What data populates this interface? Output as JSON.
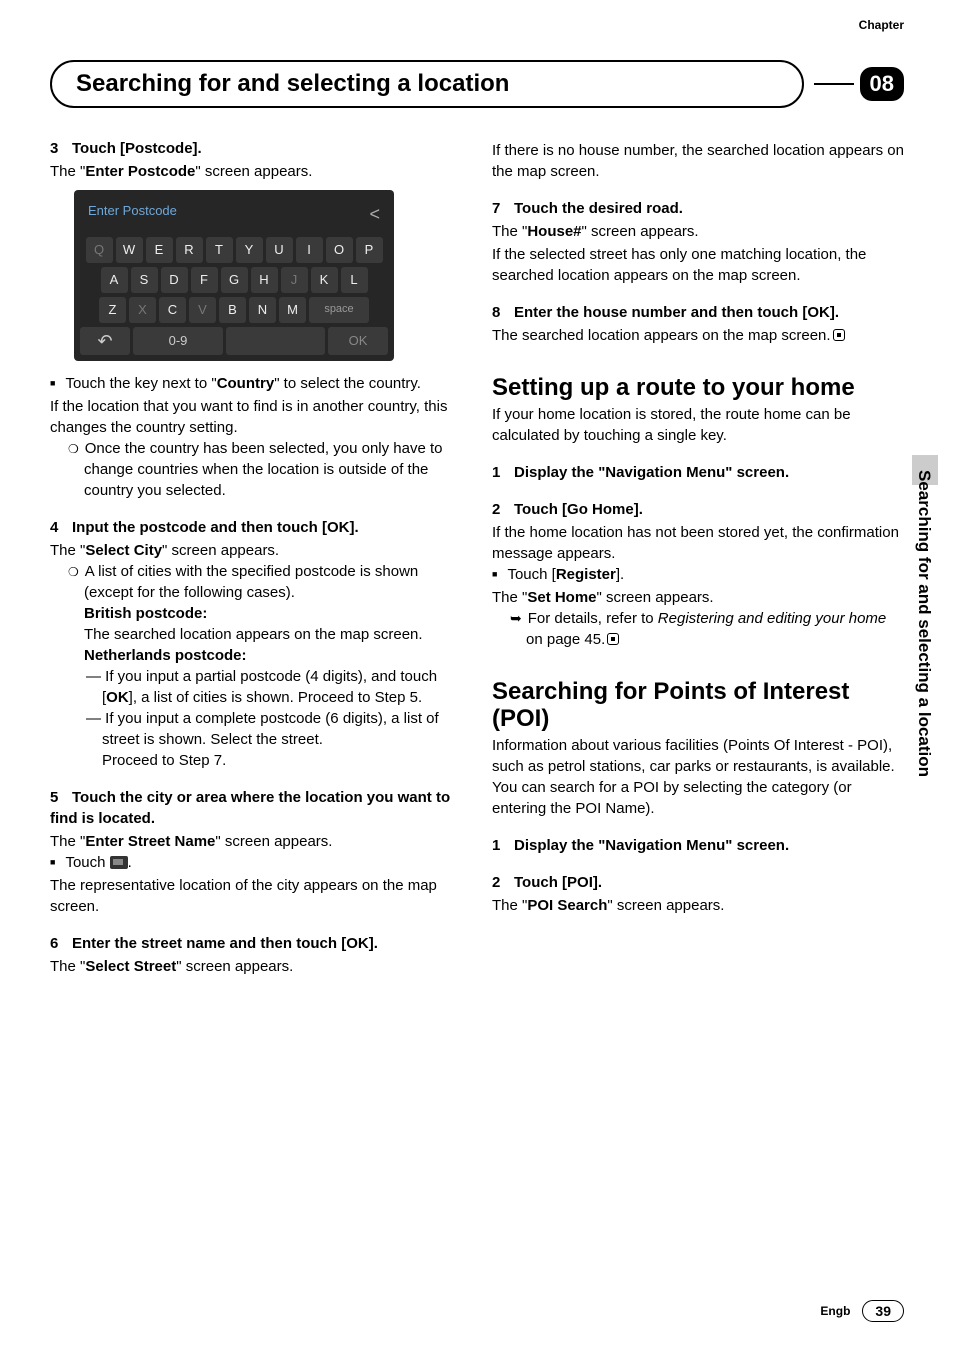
{
  "chapter_label": "Chapter",
  "chapter_number": "08",
  "header_title": "Searching for and selecting a location",
  "side_tab": "Searching for and selecting a location",
  "footer_lang": "Engb",
  "footer_page": "39",
  "keyboard": {
    "title": "Enter Postcode",
    "row1": [
      "Q",
      "W",
      "E",
      "R",
      "T",
      "Y",
      "U",
      "I",
      "O",
      "P"
    ],
    "row1_dim": [
      true,
      false,
      false,
      false,
      false,
      false,
      false,
      false,
      false,
      false
    ],
    "row2": [
      "A",
      "S",
      "D",
      "F",
      "G",
      "H",
      "J",
      "K",
      "L"
    ],
    "row2_dim": [
      false,
      false,
      false,
      false,
      false,
      false,
      true,
      false,
      false
    ],
    "row3": [
      "Z",
      "X",
      "C",
      "V",
      "B",
      "N",
      "M"
    ],
    "row3_dim": [
      false,
      true,
      false,
      true,
      false,
      false,
      false
    ],
    "space": "space",
    "num": "0-9",
    "ok": "OK"
  },
  "left": {
    "s3_head": "Touch [Postcode].",
    "s3_body_a": "The \"",
    "s3_body_b": "Enter Postcode",
    "s3_body_c": "\" screen appears.",
    "bullet_country_a": "Touch the key next to \"",
    "bullet_country_b": "Country",
    "bullet_country_c": "\" to select the country.",
    "country_line": "If the location that you want to find is in another country, this changes the country setting.",
    "country_note": "Once the country has been selected, you only have to change countries when the location is outside of the country you selected.",
    "s4_head": "Input the postcode and then touch [OK].",
    "s4_body_a": "The \"",
    "s4_body_b": "Select City",
    "s4_body_c": "\" screen appears.",
    "s4_note": "A list of cities with the specified postcode is shown (except for the following cases).",
    "british_head": "British postcode:",
    "british_body": "The searched location appears on the map screen.",
    "neth_head": "Netherlands postcode:",
    "neth_1a": "If you input a partial postcode (4 digits), and touch [",
    "neth_1b": "OK",
    "neth_1c": "], a list of cities is shown. Proceed to Step 5.",
    "neth_2": "If you input a complete postcode (6 digits), a list of street is shown. Select the street.",
    "neth_2b": "Proceed to Step 7.",
    "s5_head": "Touch the city or area where the location you want to find is located.",
    "s5_body_a": "The \"",
    "s5_body_b": "Enter Street Name",
    "s5_body_c": "\" screen appears.",
    "s5_touch": "Touch ",
    "s5_after": ".",
    "s5_rep": "The representative location of the city appears on the map screen.",
    "s6_head": "Enter the street name and then touch [OK].",
    "s6_body_a": "The \"",
    "s6_body_b": "Select Street",
    "s6_body_c": "\" screen appears."
  },
  "right": {
    "no_house": "If there is no house number, the searched location appears on the map screen.",
    "s7_head": "Touch the desired road.",
    "s7_body_a": "The \"",
    "s7_body_b": "House#",
    "s7_body_c": "\" screen appears.",
    "s7_if": "If the selected street has only one matching location, the searched location appears on the map screen.",
    "s8_head": "Enter the house number and then touch [OK].",
    "s8_body": "The searched location appears on the map screen.",
    "h2_home": "Setting up a route to your home",
    "home_intro": "If your home location is stored, the route home can be calculated by touching a single key.",
    "home_s1": "Display the \"Navigation Menu\" screen.",
    "home_s2": "Touch [Go Home].",
    "home_if": "If the home location has not been stored yet, the confirmation message appears.",
    "home_touch_a": "Touch [",
    "home_touch_b": "Register",
    "home_touch_c": "].",
    "home_set_a": "The \"",
    "home_set_b": "Set Home",
    "home_set_c": "\" screen appears.",
    "home_ref_a": "For details, refer to ",
    "home_ref_b": "Registering and editing your home",
    "home_ref_c": " on page 45.",
    "h2_poi": "Searching for Points of Interest (POI)",
    "poi_intro": "Information about various facilities (Points Of Interest - POI), such as petrol stations, car parks or restaurants, is available. You can search for a POI by selecting the category (or entering the POI Name).",
    "poi_s1": "Display the \"Navigation Menu\" screen.",
    "poi_s2": "Touch [POI].",
    "poi_body_a": "The \"",
    "poi_body_b": "POI Search",
    "poi_body_c": "\" screen appears."
  }
}
